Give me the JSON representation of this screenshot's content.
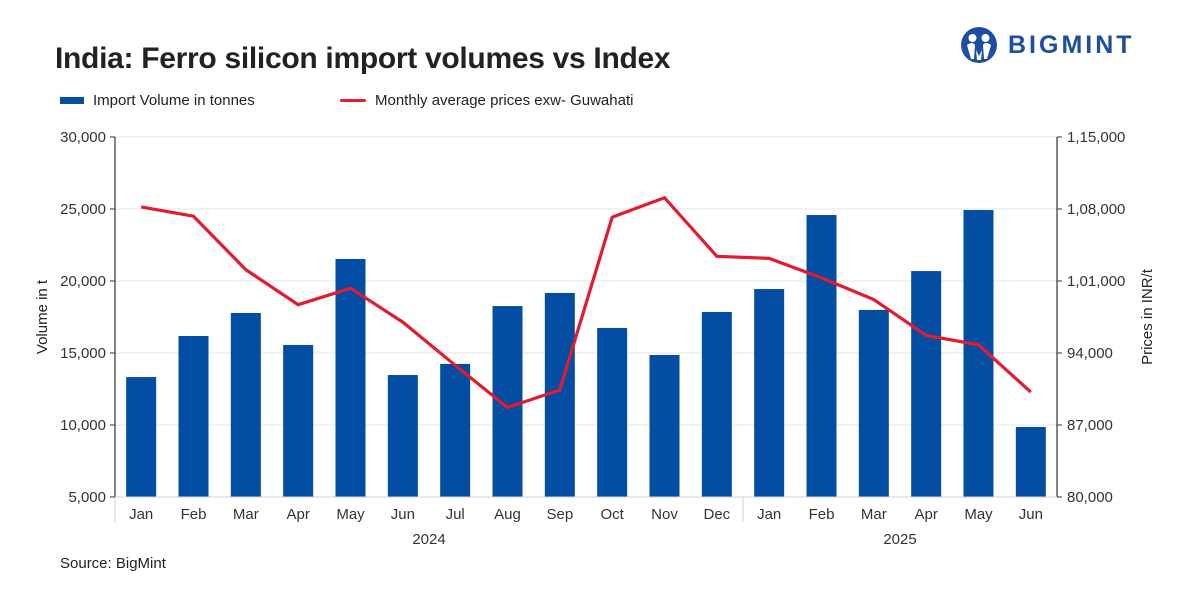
{
  "header": {
    "title": "India: Ferro silicon import volumes vs Index",
    "logo_text": "BIGMINT"
  },
  "footer": {
    "source": "Source: BigMint"
  },
  "colors": {
    "bar": "#034ea2",
    "line": "#e31b2f",
    "grid": "#e5e5e5",
    "axis": "#333333",
    "logo": "#1e4ea1"
  },
  "chart_data": {
    "type": "bar",
    "title": "India: Ferro silicon import volumes vs Index",
    "categories": [
      "Jan",
      "Feb",
      "Mar",
      "Apr",
      "May",
      "Jun",
      "Jul",
      "Aug",
      "Sep",
      "Oct",
      "Nov",
      "Dec",
      "Jan",
      "Feb",
      "Mar",
      "Apr",
      "May",
      "Jun"
    ],
    "groups": [
      {
        "label": "2024",
        "start": 0,
        "end": 11
      },
      {
        "label": "2025",
        "start": 12,
        "end": 17
      }
    ],
    "series": [
      {
        "name": "Import Volume in tonnes",
        "type": "bar",
        "axis": "left",
        "values": [
          13330,
          16180,
          17780,
          15560,
          21530,
          13470,
          14240,
          18260,
          19170,
          16740,
          14860,
          17850,
          19440,
          24580,
          17990,
          20690,
          24930,
          9860
        ]
      },
      {
        "name": "Monthly average prices exw- Guwahati",
        "type": "line",
        "axis": "right",
        "values": [
          108200,
          107300,
          102100,
          98700,
          100300,
          97000,
          92800,
          88700,
          90400,
          107200,
          109100,
          103400,
          103200,
          101300,
          99200,
          95700,
          94800,
          90200
        ]
      }
    ],
    "left_axis": {
      "label": "Volume in t",
      "ylim": [
        5000,
        30000
      ],
      "ticks": [
        5000,
        10000,
        15000,
        20000,
        25000,
        30000
      ],
      "tick_labels": [
        "5,000",
        "10,000",
        "15,000",
        "20,000",
        "25,000",
        "30,000"
      ]
    },
    "right_axis": {
      "label": "Prices in INR/t",
      "ylim": [
        80000,
        115000
      ],
      "ticks": [
        80000,
        87000,
        94000,
        101000,
        108000,
        115000
      ],
      "tick_labels": [
        "80,000",
        "87,000",
        "94,000",
        "1,01,000",
        "1,08,000",
        "1,15,000"
      ]
    },
    "xlabel": "",
    "grid": true,
    "legend_position": "top-left"
  }
}
